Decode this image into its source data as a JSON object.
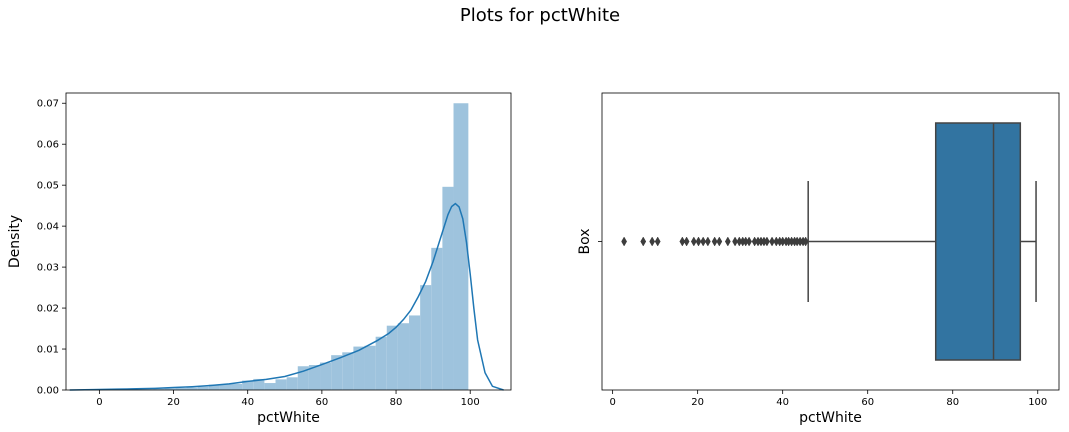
{
  "figure": {
    "suptitle": "Plots for pctWhite"
  },
  "chart_data": [
    {
      "type": "histogram",
      "xlabel": "pctWhite",
      "ylabel": "Density",
      "xlim": [
        -9,
        111
      ],
      "ylim": [
        0,
        0.0725
      ],
      "xticks": [
        0,
        20,
        40,
        60,
        80,
        100
      ],
      "yticks": [
        0.0,
        0.01,
        0.02,
        0.03,
        0.04,
        0.05,
        0.06,
        0.07
      ],
      "ytick_labels": [
        "0.00",
        "0.01",
        "0.02",
        "0.03",
        "0.04",
        "0.05",
        "0.06",
        "0.07"
      ],
      "bar_color": "#9ec3dd",
      "bins": [
        {
          "x0": 2.5,
          "x1": 5.5,
          "density": 0.0002
        },
        {
          "x0": 5.5,
          "x1": 8.5,
          "density": 0.0002
        },
        {
          "x0": 8.5,
          "x1": 11.5,
          "density": 0.0002
        },
        {
          "x0": 11.5,
          "x1": 14.5,
          "density": 0.0002
        },
        {
          "x0": 14.5,
          "x1": 17.5,
          "density": 0.0003
        },
        {
          "x0": 17.5,
          "x1": 20.5,
          "density": 0.0004
        },
        {
          "x0": 20.5,
          "x1": 23.5,
          "density": 0.0005
        },
        {
          "x0": 23.5,
          "x1": 26.5,
          "density": 0.0006
        },
        {
          "x0": 26.5,
          "x1": 29.5,
          "density": 0.0008
        },
        {
          "x0": 29.5,
          "x1": 32.5,
          "density": 0.0013
        },
        {
          "x0": 32.5,
          "x1": 35.5,
          "density": 0.0014
        },
        {
          "x0": 35.5,
          "x1": 38.5,
          "density": 0.0015
        },
        {
          "x0": 38.5,
          "x1": 41.5,
          "density": 0.0023
        },
        {
          "x0": 41.5,
          "x1": 44.5,
          "density": 0.0027
        },
        {
          "x0": 44.5,
          "x1": 47.5,
          "density": 0.0017
        },
        {
          "x0": 47.5,
          "x1": 50.5,
          "density": 0.0026
        },
        {
          "x0": 50.5,
          "x1": 53.5,
          "density": 0.0031
        },
        {
          "x0": 53.5,
          "x1": 56.5,
          "density": 0.0058
        },
        {
          "x0": 56.5,
          "x1": 59.5,
          "density": 0.0061
        },
        {
          "x0": 59.5,
          "x1": 62.5,
          "density": 0.0067
        },
        {
          "x0": 62.5,
          "x1": 65.5,
          "density": 0.0085
        },
        {
          "x0": 65.5,
          "x1": 68.5,
          "density": 0.0092
        },
        {
          "x0": 68.5,
          "x1": 71.5,
          "density": 0.0106
        },
        {
          "x0": 71.5,
          "x1": 74.5,
          "density": 0.0108
        },
        {
          "x0": 74.5,
          "x1": 77.5,
          "density": 0.013
        },
        {
          "x0": 77.5,
          "x1": 80.5,
          "density": 0.0157
        },
        {
          "x0": 80.5,
          "x1": 83.5,
          "density": 0.0163
        },
        {
          "x0": 83.5,
          "x1": 86.5,
          "density": 0.0182
        },
        {
          "x0": 86.5,
          "x1": 89.5,
          "density": 0.0256
        },
        {
          "x0": 89.5,
          "x1": 92.5,
          "density": 0.0347
        },
        {
          "x0": 92.5,
          "x1": 95.5,
          "density": 0.0496
        },
        {
          "x0": 95.5,
          "x1": 99.5,
          "density": 0.07
        }
      ],
      "kde": {
        "color": "#1f77b4",
        "x": [
          -8,
          -2,
          5,
          10,
          15,
          20,
          25,
          30,
          35,
          40,
          45,
          50,
          55,
          60,
          65,
          70,
          75,
          78,
          80,
          82,
          84,
          86,
          88,
          90,
          92,
          94,
          95,
          96,
          97,
          98,
          99,
          100,
          101,
          102,
          104,
          106,
          109
        ],
        "y": [
          0.0,
          0.0001,
          0.0002,
          0.0003,
          0.0004,
          0.0006,
          0.0008,
          0.0011,
          0.0015,
          0.0021,
          0.0026,
          0.0033,
          0.0046,
          0.0062,
          0.0079,
          0.0097,
          0.0121,
          0.0138,
          0.0153,
          0.0172,
          0.0195,
          0.0228,
          0.0265,
          0.0314,
          0.0371,
          0.0428,
          0.0448,
          0.0455,
          0.0447,
          0.0418,
          0.036,
          0.0283,
          0.0198,
          0.0122,
          0.0042,
          0.0009,
          0.0
        ]
      }
    },
    {
      "type": "box",
      "xlabel": "pctWhite",
      "ylabel": "Box",
      "xlim": [
        -2.5,
        105
      ],
      "xticks": [
        0,
        20,
        40,
        60,
        80,
        100
      ],
      "box_color": "#3274a1",
      "line_color": "#444444",
      "whisker_low": 46,
      "q1": 76,
      "median": 89.6,
      "q3": 95.9,
      "whisker_high": 99.6,
      "outliers": [
        2.7,
        7.2,
        9.3,
        10.6,
        16.4,
        17.4,
        19.1,
        20.2,
        21.3,
        22.4,
        24.0,
        25.1,
        27.1,
        28.8,
        29.8,
        30.6,
        31.3,
        32.1,
        33.4,
        34.2,
        34.9,
        35.6,
        36.3,
        37.5,
        38.5,
        39.3,
        40.0,
        40.8,
        41.4,
        42.1,
        42.8,
        43.4,
        44.1,
        44.8,
        45.4
      ]
    }
  ]
}
